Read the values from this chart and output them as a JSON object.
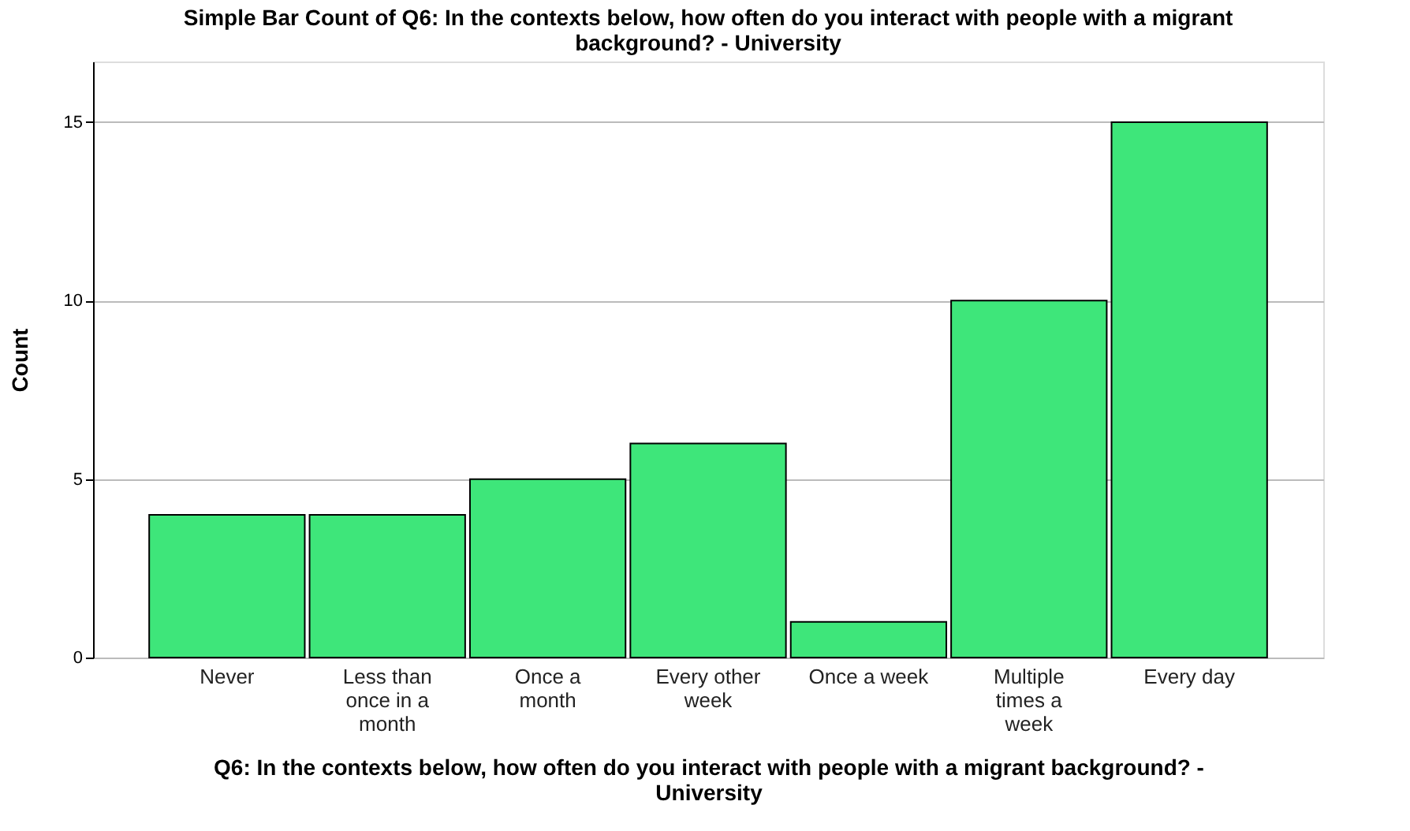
{
  "chart_data": {
    "type": "bar",
    "title": "Simple Bar Count of Q6: In the contexts below, how often do you interact with people with a migrant background? - University",
    "xlabel": "Q6: In the contexts below, how often do you interact with people with a migrant background? - University",
    "ylabel": "Count",
    "categories": [
      "Never",
      "Less than once in a month",
      "Once a month",
      "Every other week",
      "Once a week",
      "Multiple times a week",
      "Every day"
    ],
    "values": [
      4,
      4,
      5,
      6,
      1,
      10,
      15
    ],
    "color": "#3ee67a",
    "ylim": [
      0,
      16.7
    ],
    "yticks": [
      0,
      5,
      10,
      15
    ],
    "grid": "y"
  }
}
